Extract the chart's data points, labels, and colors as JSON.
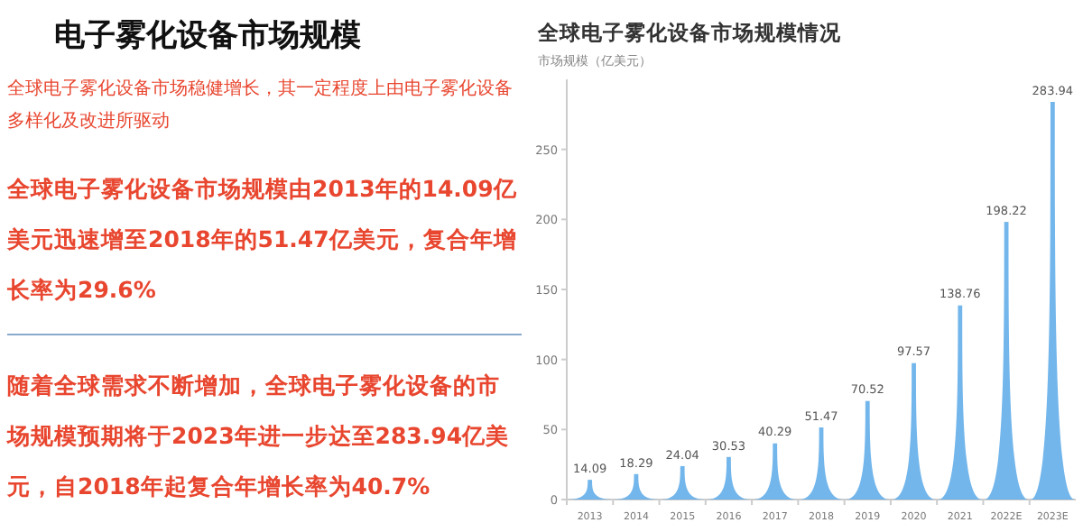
{
  "chart_data": {
    "type": "bar",
    "title": "全球电子雾化设备市场规模情况",
    "ylabel": "市场规模（亿美元）",
    "categories": [
      "2013",
      "2014",
      "2015",
      "2016",
      "2017",
      "2018",
      "2019",
      "2020",
      "2021",
      "2022E",
      "2023E"
    ],
    "values": [
      14.09,
      18.29,
      24.04,
      30.53,
      40.29,
      51.47,
      70.52,
      97.57,
      138.76,
      198.22,
      283.94
    ],
    "color": "#5aa9e8",
    "ylim": [
      0,
      300
    ],
    "yticks": [
      0,
      50,
      100,
      150,
      200,
      250
    ],
    "data_labels": true,
    "grid": false,
    "annotations": [
      "电子雾化设备市场规模",
      "全球电子雾化设备市场稳健增长，其一定程度上由电子雾化设备多样化及改进所驱动",
      "全球电子雾化设备市场规模由2013年的14.09亿美元迅速增至2018年的51.47亿美元，复合年增长率为29.6%",
      "随着全球需求不断增加，全球电子雾化设备的市场规模预期将于2023年进一步达至283.94亿美元，自2018年起复合年增长率为40.7%"
    ]
  }
}
